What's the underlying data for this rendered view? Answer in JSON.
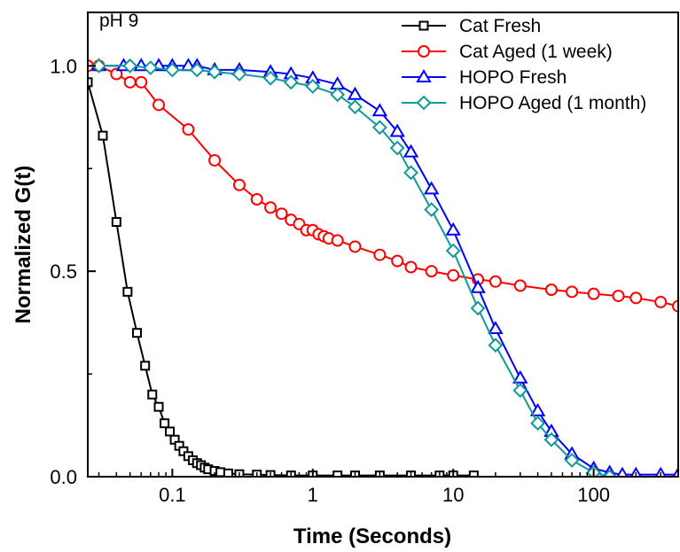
{
  "chart_data": {
    "type": "line",
    "title": "",
    "annotation": "pH 9",
    "xlabel": "Time (Seconds)",
    "ylabel": "Normalized G(t)",
    "x_scale": "log",
    "xlim": [
      0.025,
      400
    ],
    "ylim": [
      0,
      1.13
    ],
    "x_ticks": [
      {
        "value": 0.1,
        "label": "0.1"
      },
      {
        "value": 1,
        "label": "1"
      },
      {
        "value": 10,
        "label": "10"
      },
      {
        "value": 100,
        "label": "100"
      }
    ],
    "y_ticks": [
      {
        "value": 0.0,
        "label": "0.0"
      },
      {
        "value": 0.5,
        "label": "0.5"
      },
      {
        "value": 1.0,
        "label": "1.0"
      }
    ],
    "legend_position": "top-right",
    "grid": false,
    "series": [
      {
        "name": "Cat Fresh",
        "color": "#000000",
        "marker": "square",
        "x": [
          0.025,
          0.032,
          0.04,
          0.048,
          0.056,
          0.064,
          0.072,
          0.08,
          0.088,
          0.096,
          0.104,
          0.112,
          0.12,
          0.13,
          0.14,
          0.15,
          0.16,
          0.17,
          0.18,
          0.2,
          0.22,
          0.25,
          0.3,
          0.4,
          0.5,
          0.7,
          1.0,
          1.5,
          2,
          3,
          5,
          8,
          10,
          14
        ],
        "y": [
          0.96,
          0.83,
          0.62,
          0.45,
          0.35,
          0.27,
          0.2,
          0.17,
          0.13,
          0.11,
          0.09,
          0.075,
          0.062,
          0.05,
          0.04,
          0.033,
          0.028,
          0.022,
          0.018,
          0.014,
          0.011,
          0.008,
          0.006,
          0.005,
          0.004,
          0.003,
          0.003,
          0.003,
          0.003,
          0.003,
          0.003,
          0.003,
          0.003,
          0.003
        ]
      },
      {
        "name": "Cat Aged (1 week)",
        "color": "#ff0000",
        "marker": "circle",
        "x": [
          0.025,
          0.03,
          0.04,
          0.05,
          0.06,
          0.08,
          0.13,
          0.2,
          0.3,
          0.4,
          0.5,
          0.6,
          0.7,
          0.8,
          0.9,
          1.0,
          1.1,
          1.2,
          1.3,
          1.5,
          2,
          3,
          4,
          5,
          7,
          10,
          15,
          20,
          30,
          50,
          70,
          100,
          150,
          200,
          300,
          400
        ],
        "y": [
          1.0,
          1.0,
          0.98,
          0.96,
          0.96,
          0.905,
          0.845,
          0.77,
          0.71,
          0.675,
          0.655,
          0.64,
          0.625,
          0.615,
          0.6,
          0.6,
          0.59,
          0.585,
          0.58,
          0.575,
          0.56,
          0.54,
          0.525,
          0.51,
          0.5,
          0.49,
          0.48,
          0.475,
          0.465,
          0.455,
          0.45,
          0.445,
          0.44,
          0.435,
          0.425,
          0.415
        ]
      },
      {
        "name": "HOPO Fresh",
        "color": "#0000ff",
        "marker": "triangle",
        "x": [
          0.03,
          0.045,
          0.06,
          0.08,
          0.1,
          0.13,
          0.15,
          0.2,
          0.3,
          0.5,
          0.7,
          1.0,
          1.5,
          2,
          3,
          4,
          5,
          7,
          10,
          15,
          20,
          30,
          40,
          50,
          70,
          100,
          130,
          160,
          200,
          300,
          400
        ],
        "y": [
          1.0,
          1.0,
          1.0,
          1.0,
          1.0,
          1.0,
          1.0,
          0.99,
          0.99,
          0.985,
          0.98,
          0.97,
          0.955,
          0.93,
          0.89,
          0.84,
          0.79,
          0.7,
          0.6,
          0.46,
          0.36,
          0.24,
          0.16,
          0.11,
          0.055,
          0.02,
          0.01,
          0.005,
          0.005,
          0.005,
          0.005
        ]
      },
      {
        "name": "HOPO Aged (1 month)",
        "color": "#119999",
        "marker": "diamond",
        "x": [
          0.03,
          0.05,
          0.07,
          0.1,
          0.15,
          0.2,
          0.3,
          0.5,
          0.7,
          1.0,
          1.5,
          2,
          3,
          4,
          5,
          7,
          10,
          15,
          20,
          30,
          40,
          50,
          70,
          100,
          130
        ],
        "y": [
          1.0,
          1.0,
          0.995,
          0.99,
          0.99,
          0.985,
          0.98,
          0.97,
          0.96,
          0.95,
          0.93,
          0.9,
          0.85,
          0.8,
          0.74,
          0.65,
          0.55,
          0.41,
          0.32,
          0.21,
          0.13,
          0.09,
          0.04,
          0.01,
          0.0
        ]
      }
    ]
  }
}
